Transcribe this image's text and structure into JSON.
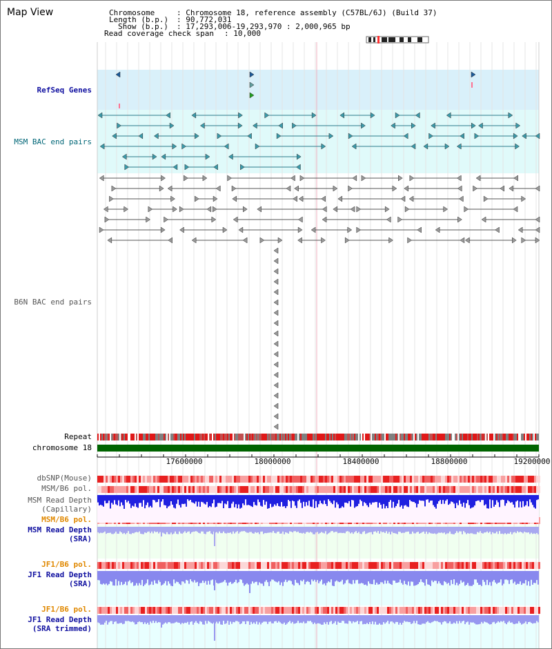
{
  "title": "Map View",
  "header": {
    "rows": [
      {
        "key": "Chromosome",
        "value": "Chromosome 18, reference assembly (C57BL/6J) (Build 37)"
      },
      {
        "key": "Length (b.p.)",
        "value": "90,772,031"
      },
      {
        "key": "Show (b.p.)",
        "value": "17,293,006-19,293,970 : 2,000,965 bp"
      },
      {
        "key": "Read coverage check span",
        "value": "10,000"
      }
    ]
  },
  "tracks": {
    "refseq": "RefSeq Genes",
    "msm_bac": "MSM BAC end pairs",
    "b6n_bac": "B6N BAC end pairs",
    "repeat": "Repeat",
    "chromosome": "chromosome 18",
    "dbsnp": "dbSNP(Mouse)",
    "msm_pol_1": "MSM/B6 pol.",
    "msm_depth_cap_1": "MSM Read Depth",
    "msm_depth_cap_2": "(Capillary)",
    "msm_pol_2": "MSM/B6 pol.",
    "msm_depth_sra_1": "MSM Read Depth",
    "msm_depth_sra_2": "(SRA)",
    "jf1_pol_1": "JF1/B6 pol.",
    "jf1_depth_sra_1": "JF1 Read Depth",
    "jf1_depth_sra_2": "(SRA)",
    "jf1_pol_2": "JF1/B6 pol.",
    "jf1_depth_trim_1": "JF1 Read Depth",
    "jf1_depth_trim_2": "(SRA trimmed)"
  },
  "axis": {
    "ticks": [
      "17600000",
      "18000000",
      "18400000",
      "18800000",
      "19200000"
    ]
  },
  "colors": {
    "refseq_bg": "#d9f0fa",
    "msm_bg": "#e0fafa",
    "depth_bg": "#f0fff0",
    "jf1_bg": "#e8ffff",
    "chromosome": "#006400",
    "depth_bar": "#2020e0",
    "depth_bar_light": "#8888ee",
    "pol_red": "#e82020"
  }
}
